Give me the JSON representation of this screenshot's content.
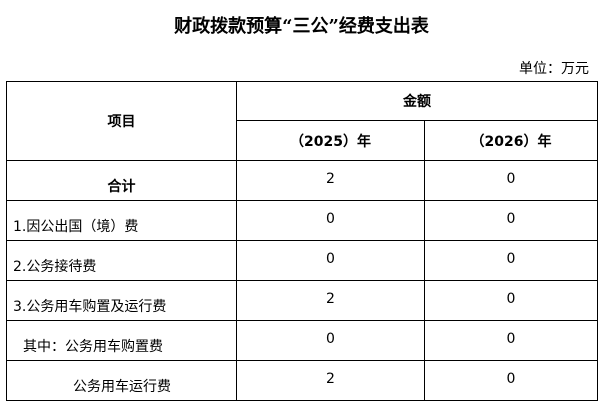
{
  "title": "财政拨款预算“三公”经费支出表",
  "unit": "单位：万元",
  "header": {
    "item": "项目",
    "amount": "金额",
    "year1": "（2025）年",
    "year2": "（2026）年"
  },
  "rows": [
    {
      "label": "合计",
      "v1": "2",
      "v2": "0"
    },
    {
      "label": "1.因公出国（境）费",
      "v1": "0",
      "v2": "0"
    },
    {
      "label": "2.公务接待费",
      "v1": "0",
      "v2": "0"
    },
    {
      "label": "3.公务用车购置及运行费",
      "v1": "2",
      "v2": "0"
    },
    {
      "label": "其中：公务用车购置费",
      "v1": "0",
      "v2": "0"
    },
    {
      "label": "公务用车运行费",
      "v1": "2",
      "v2": "0"
    }
  ]
}
